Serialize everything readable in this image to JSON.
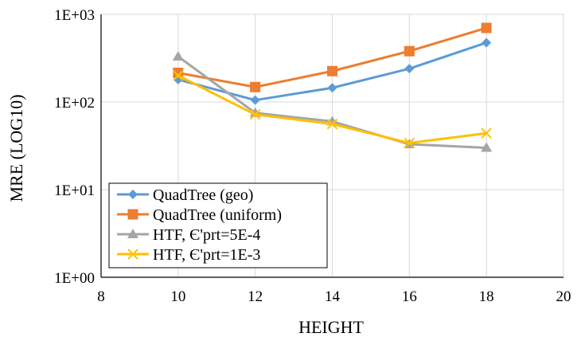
{
  "chart_data": {
    "type": "line",
    "title": "",
    "xlabel": "HEIGHT",
    "ylabel": "MRE (LOG10)",
    "x_ticks": [
      "8",
      "10",
      "12",
      "14",
      "16",
      "18",
      "20"
    ],
    "y_ticks": [
      "1E+00",
      "1E+01",
      "1E+02",
      "1E+03"
    ],
    "xlim": [
      8,
      20
    ],
    "ylim": [
      1,
      1000
    ],
    "yscale": "log",
    "grid": true,
    "legend_position": "bottom-left",
    "x": [
      10,
      12,
      14,
      16,
      18
    ],
    "series": [
      {
        "name": "QuadTree (geo)",
        "values": [
          180,
          105,
          145,
          240,
          475
        ],
        "color": "#5B9BD5",
        "marker": "diamond"
      },
      {
        "name": "QuadTree (uniform)",
        "values": [
          215,
          148,
          225,
          380,
          700
        ],
        "color": "#ED7D31",
        "marker": "square"
      },
      {
        "name": "HTF, Є'prt=5E-4",
        "values": [
          330,
          75,
          60,
          33,
          30
        ],
        "color": "#A5A5A5",
        "marker": "triangle"
      },
      {
        "name": "HTF, Є'prt=1E-3",
        "values": [
          200,
          72,
          56,
          34,
          44
        ],
        "color": "#FFC000",
        "marker": "x"
      }
    ]
  }
}
